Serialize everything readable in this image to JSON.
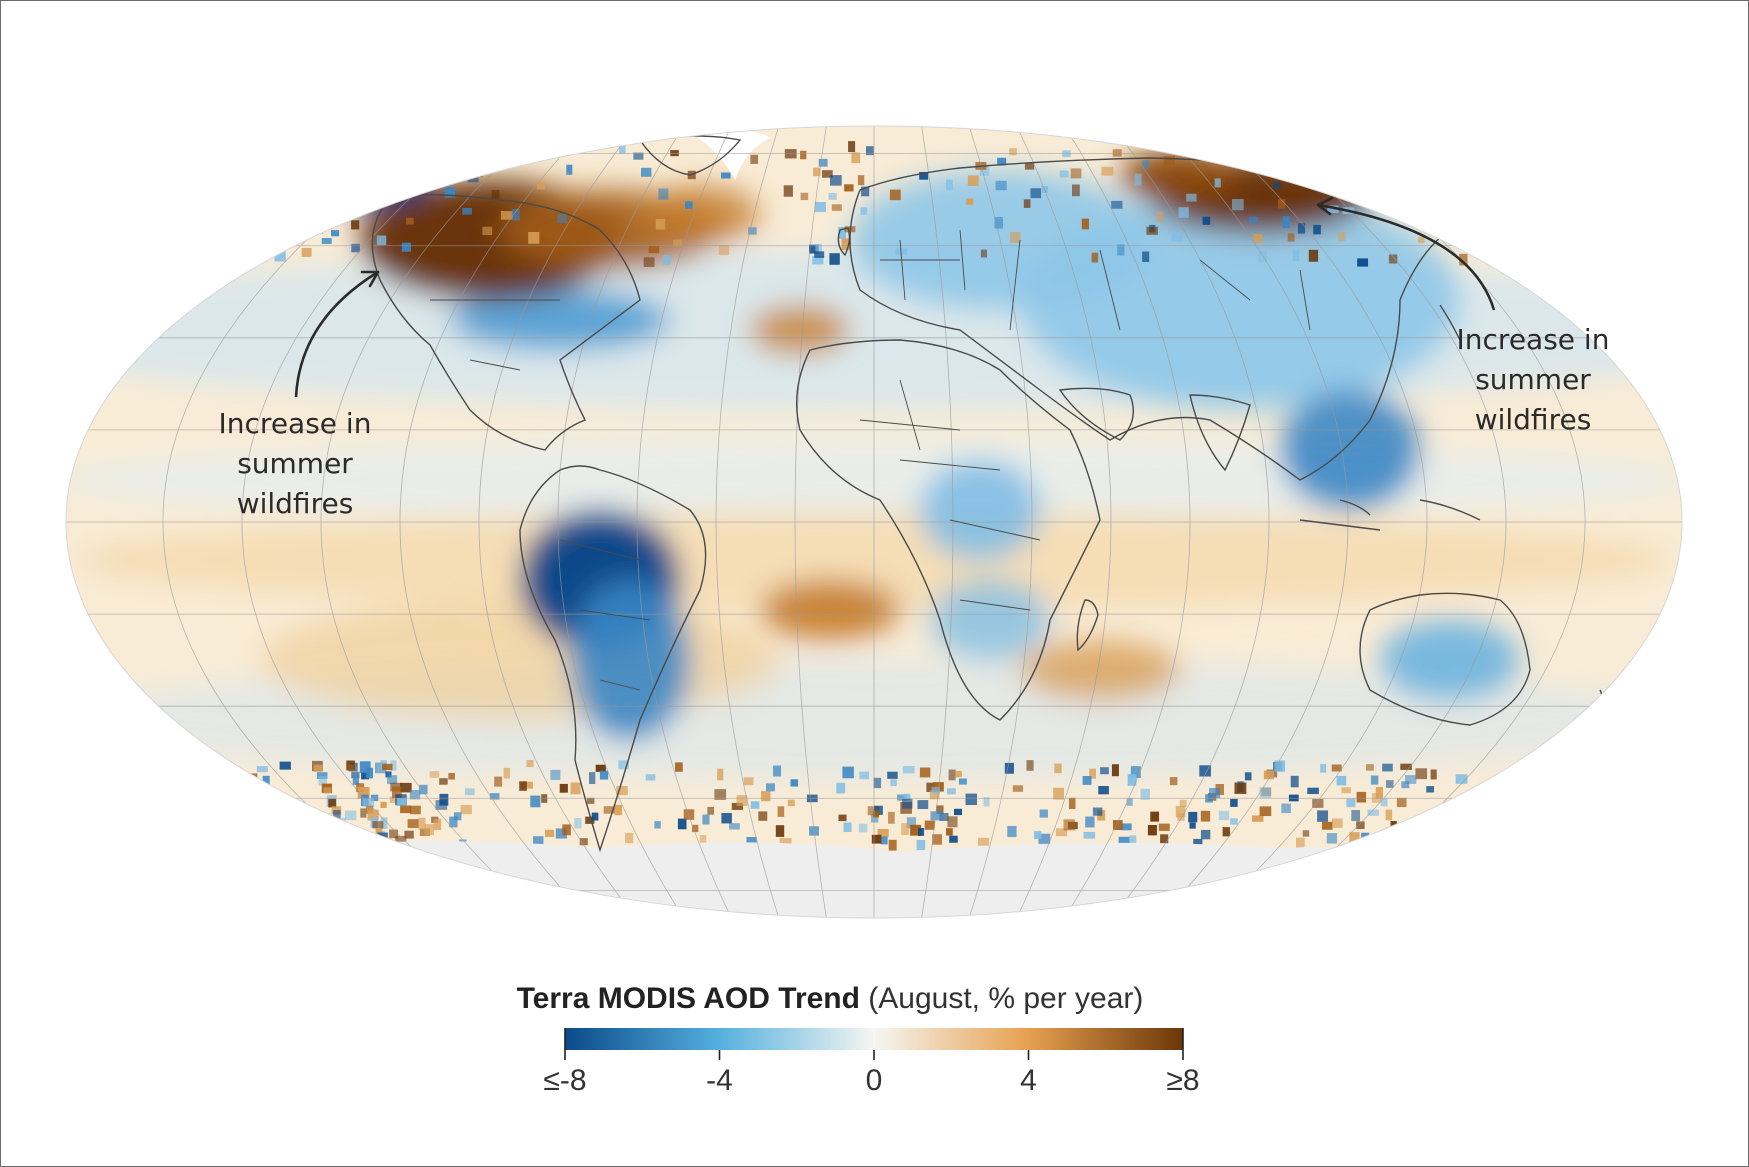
{
  "legend": {
    "title_bold": "Terra MODIS AOD Trend",
    "title_rest": "(August, % per year)",
    "ticks": [
      "≤-8",
      "-4",
      "0",
      "4",
      "≥8"
    ],
    "tick_values": [
      -8,
      -4,
      0,
      4,
      8
    ],
    "domain": [
      -8,
      8
    ],
    "colors": {
      "low": "#0b4a8a",
      "mid_low": "#55b0df",
      "zero": "#f6f6f2",
      "mid_high": "#e6a050",
      "high": "#6b3608"
    }
  },
  "annotations": {
    "left": [
      "Increase in",
      "summer",
      "wildfires"
    ],
    "right": [
      "Increase in",
      "summer",
      "wildfires"
    ]
  },
  "map": {
    "projection": "robinson",
    "ocean_tone": "#f9ecd6",
    "antarctica_tone": "#eeeeee",
    "arctic_gap_tone": "#ffffff",
    "border_color": "#4a4a4a"
  }
}
